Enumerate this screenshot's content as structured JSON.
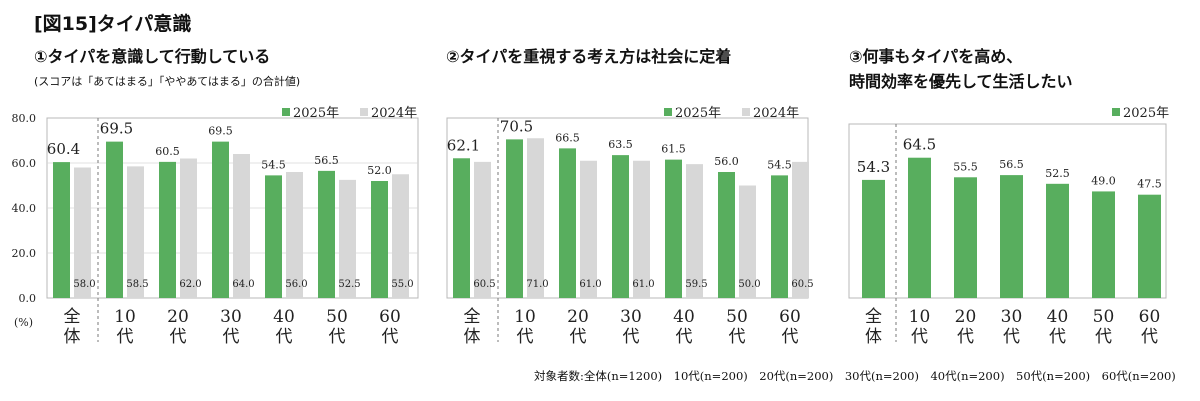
{
  "title": "[図15]タイパ意識",
  "footnote": "対象者数:全体(n=1200)　10代(n=200)　20代(n=200)　30代(n=200)　40代(n=200)　50代(n=200)　60代(n=200)",
  "colors": {
    "s2025": "#58ae5e",
    "s2024": "#d7d7d7",
    "border": "#b8b8b8",
    "grid": "#d8d8d8"
  },
  "panels": [
    {
      "title": "①タイパを意識して行動している",
      "subtitle": "(スコアは「あてはまる」「ややあてはまる」の合計値)"
    },
    {
      "title": "②タイパを重視する考え方は社会に定着"
    },
    {
      "title": "③何事もタイパを高め、\n時間効率を優先して生活したい"
    }
  ],
  "chart_data": [
    {
      "type": "bar",
      "categories": [
        "全体",
        "10代",
        "20代",
        "30代",
        "40代",
        "50代",
        "60代"
      ],
      "series": [
        {
          "name": "2025年",
          "values": [
            60.4,
            69.5,
            60.5,
            69.5,
            54.5,
            56.5,
            52.0
          ],
          "labels": [
            "60.4",
            "69.5",
            "60.5",
            "69.5",
            "54.5",
            "56.5",
            "52.0"
          ]
        },
        {
          "name": "2024年",
          "values": [
            58.0,
            58.5,
            62.0,
            64.0,
            56.0,
            52.5,
            55.0
          ],
          "labels": [
            "58.0",
            "58.5",
            "62.0",
            "64.0",
            "56.0",
            "52.5",
            "55.0"
          ]
        }
      ],
      "yticks": [
        "0.0",
        "20.0",
        "40.0",
        "60.0",
        "80.0"
      ],
      "yunit": "(%)",
      "ylim": [
        0,
        80
      ],
      "legend": "top-right"
    },
    {
      "type": "bar",
      "categories": [
        "全体",
        "10代",
        "20代",
        "30代",
        "40代",
        "50代",
        "60代"
      ],
      "series": [
        {
          "name": "2025年",
          "values": [
            62.1,
            70.5,
            66.5,
            63.5,
            61.5,
            56.0,
            54.5
          ],
          "labels": [
            "62.1",
            "70.5",
            "66.5",
            "63.5",
            "61.5",
            "56.0",
            "54.5"
          ]
        },
        {
          "name": "2024年",
          "values": [
            60.5,
            71.0,
            61.0,
            61.0,
            59.5,
            50.0,
            60.5
          ],
          "labels": [
            "60.5",
            "71.0",
            "61.0",
            "61.0",
            "59.5",
            "50.0",
            "60.5"
          ]
        }
      ],
      "ylim": [
        0,
        80
      ],
      "legend": "top-right"
    },
    {
      "type": "bar",
      "categories": [
        "全体",
        "10代",
        "20代",
        "30代",
        "40代",
        "50代",
        "60代"
      ],
      "series": [
        {
          "name": "2025年",
          "values": [
            54.3,
            64.5,
            55.5,
            56.5,
            52.5,
            49.0,
            47.5
          ],
          "labels": [
            "54.3",
            "64.5",
            "55.5",
            "56.5",
            "52.5",
            "49.0",
            "47.5"
          ]
        }
      ],
      "ylim": [
        0,
        80
      ],
      "legend": "top-right"
    }
  ]
}
